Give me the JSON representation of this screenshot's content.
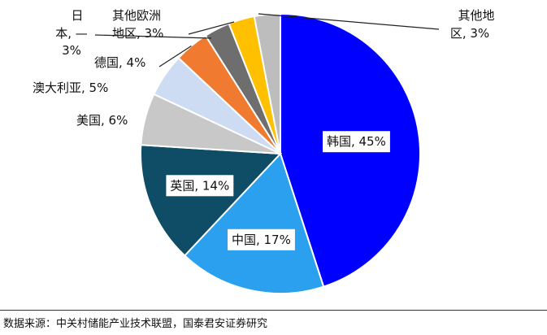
{
  "chart_data": {
    "type": "pie",
    "start": "12 o'clock, clockwise",
    "slices": [
      {
        "name": "韩国",
        "value": 45,
        "color": "#0000ff",
        "label": "韩国, 45%"
      },
      {
        "name": "中国",
        "value": 17,
        "color": "#2aa0ee",
        "label": "中国, 17%"
      },
      {
        "name": "英国",
        "value": 14,
        "color": "#0f4c66",
        "label": "英国, 14%"
      },
      {
        "name": "美国",
        "value": 6,
        "color": "#c8c8c8",
        "label": "美国, 6%"
      },
      {
        "name": "澳大利亚",
        "value": 5,
        "color": "#cddcf2",
        "label": "澳大利亚, 5%"
      },
      {
        "name": "德国",
        "value": 4,
        "color": "#f07a30",
        "label": "德国, 4%"
      },
      {
        "name": "日本",
        "value": 3,
        "color": "#6e6e6e",
        "label": "日本,\n3%"
      },
      {
        "name": "其他欧洲地区",
        "value": 3,
        "color": "#ffc000",
        "label": "其他欧洲\n地区, 3%"
      },
      {
        "name": "其他地区",
        "value": 3,
        "color": "#bdbdbd",
        "label": "其他地\n区, 3%"
      }
    ]
  },
  "source_note": "数据来源：中关村储能产业技术联盟，国泰君安证券研究"
}
